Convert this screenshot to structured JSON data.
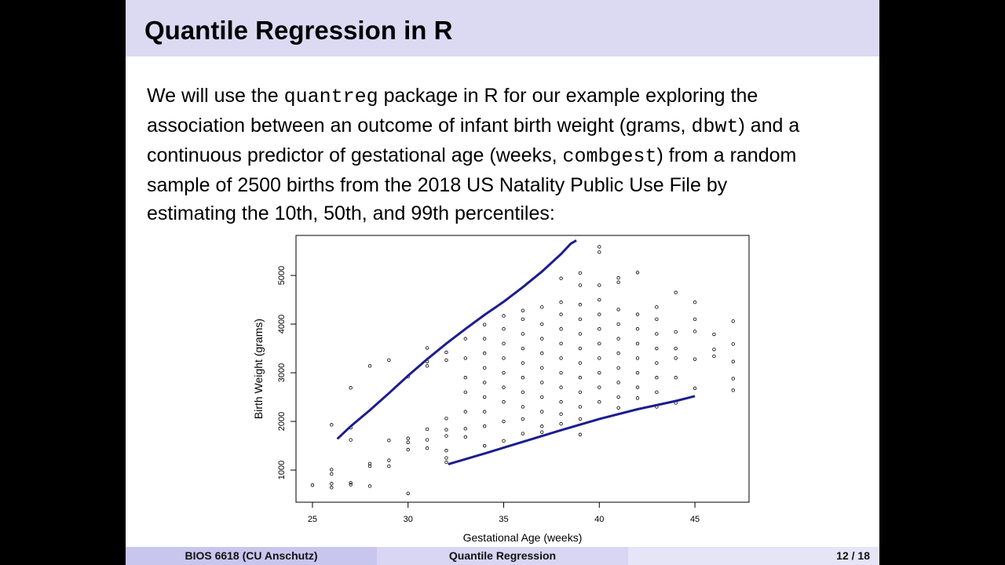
{
  "header": {
    "title": "Quantile Regression in R"
  },
  "body": {
    "lines": [
      [
        {
          "text": "We will use the "
        },
        {
          "text": "quantreg",
          "font": "mono"
        },
        {
          "text": " package in R for our example exploring the"
        }
      ],
      [
        {
          "text": "association between an outcome of infant birth weight (grams, "
        },
        {
          "text": "dbwt",
          "font": "mono"
        },
        {
          "text": ") and a"
        }
      ],
      [
        {
          "text": "continuous predictor of gestational age (weeks, "
        },
        {
          "text": "combgest",
          "font": "mono"
        },
        {
          "text": ") from a random"
        }
      ],
      [
        {
          "text": "sample of 2500 births from the 2018 US Natality Public Use File by"
        }
      ],
      [
        {
          "text": "estimating the 10th, 50th, and 99th percentiles:"
        }
      ]
    ]
  },
  "chart_data": {
    "type": "scatter",
    "x_label": "Gestational Age (weeks)",
    "y_label": "Birth Weight (grams)",
    "xlim": [
      24.14,
      47.83
    ],
    "ylim": [
      339,
      5823
    ],
    "xticks": [
      25,
      30,
      35,
      40,
      45
    ],
    "yticks": [
      1000,
      2000,
      3000,
      4000,
      5000
    ],
    "series": [
      {
        "type": "scatter",
        "color": "#000000",
        "x": [
          25,
          26,
          26,
          26,
          26,
          26,
          27,
          27,
          27,
          27,
          27,
          28,
          28,
          28,
          28,
          29,
          29,
          29,
          29,
          30,
          30,
          30,
          30,
          30,
          31,
          31,
          31,
          31,
          31,
          31,
          32,
          32,
          32,
          32,
          32,
          32,
          32,
          32,
          33,
          33,
          33,
          33,
          33,
          33,
          33,
          34,
          34,
          34,
          34,
          34,
          34,
          34,
          34,
          34,
          35,
          35,
          35,
          35,
          35,
          35,
          35,
          35,
          35,
          36,
          36,
          36,
          36,
          36,
          36,
          36,
          36,
          36,
          36,
          37,
          37,
          37,
          37,
          37,
          37,
          37,
          37,
          37,
          37,
          38,
          38,
          38,
          38,
          38,
          38,
          38,
          38,
          38,
          38,
          38,
          39,
          39,
          39,
          39,
          39,
          39,
          39,
          39,
          39,
          39,
          39,
          39,
          40,
          40,
          40,
          40,
          40,
          40,
          40,
          40,
          40,
          40,
          40,
          41,
          41,
          41,
          41,
          41,
          41,
          41,
          41,
          41,
          41,
          42,
          42,
          42,
          42,
          42,
          42,
          42,
          42,
          43,
          43,
          43,
          43,
          43,
          43,
          43,
          43,
          44,
          44,
          44,
          44,
          44,
          44,
          45,
          45,
          45,
          45,
          45,
          46,
          46,
          46,
          47,
          47,
          47,
          47,
          47
        ],
        "values": [
          690,
          640,
          720,
          920,
          1010,
          1930,
          700,
          740,
          1620,
          1870,
          2690,
          670,
          1080,
          1130,
          3140,
          1080,
          1200,
          1610,
          3260,
          520,
          1420,
          1570,
          1650,
          2920,
          1450,
          1620,
          1840,
          3140,
          3230,
          3510,
          1160,
          1250,
          1400,
          1700,
          1830,
          2060,
          3260,
          3420,
          1680,
          1850,
          2200,
          2600,
          2900,
          3300,
          3700,
          1500,
          1900,
          2200,
          2500,
          2800,
          3100,
          3400,
          3700,
          3990,
          1600,
          2000,
          2400,
          2700,
          3000,
          3300,
          3600,
          3900,
          4170,
          1750,
          2050,
          2300,
          2600,
          2900,
          3200,
          3500,
          3800,
          4100,
          4280,
          1780,
          1900,
          2200,
          2500,
          2800,
          3100,
          3400,
          3700,
          4000,
          4350,
          1950,
          2150,
          2400,
          2700,
          3000,
          3300,
          3600,
          3900,
          4200,
          4450,
          4940,
          1730,
          2050,
          2300,
          2600,
          2900,
          3200,
          3500,
          3800,
          4100,
          4400,
          4800,
          5050,
          2400,
          2700,
          3000,
          3300,
          3600,
          3900,
          4200,
          4500,
          4800,
          5480,
          5590,
          2280,
          2500,
          2800,
          3100,
          3400,
          3700,
          4000,
          4300,
          4860,
          4950,
          2480,
          2700,
          3000,
          3300,
          3600,
          3900,
          4200,
          5060,
          2300,
          2600,
          2900,
          3200,
          3500,
          3800,
          4100,
          4350,
          2380,
          2900,
          3300,
          3500,
          3840,
          4650,
          2680,
          3280,
          3850,
          4100,
          4450,
          3340,
          3480,
          3790,
          2640,
          2880,
          3230,
          3590,
          4060
        ]
      },
      {
        "type": "line",
        "color": "#1c1c8f",
        "x": [
          26.3,
          27,
          28,
          29,
          30,
          31,
          32,
          33,
          34,
          35,
          36,
          37,
          38,
          38.5,
          38.8
        ],
        "values": [
          1640,
          1900,
          2230,
          2580,
          2940,
          3280,
          3600,
          3900,
          4190,
          4460,
          4760,
          5080,
          5440,
          5650,
          5720
        ]
      },
      {
        "type": "line",
        "color": "#1c1c8f",
        "x": [
          32.1,
          34,
          36,
          38,
          40,
          42,
          44,
          45
        ],
        "values": [
          1120,
          1340,
          1580,
          1820,
          2050,
          2250,
          2420,
          2520
        ]
      }
    ]
  },
  "footer": {
    "left": "BIOS 6618  (CU Anschutz)",
    "center": "Quantile Regression",
    "right": "12 / 18"
  }
}
